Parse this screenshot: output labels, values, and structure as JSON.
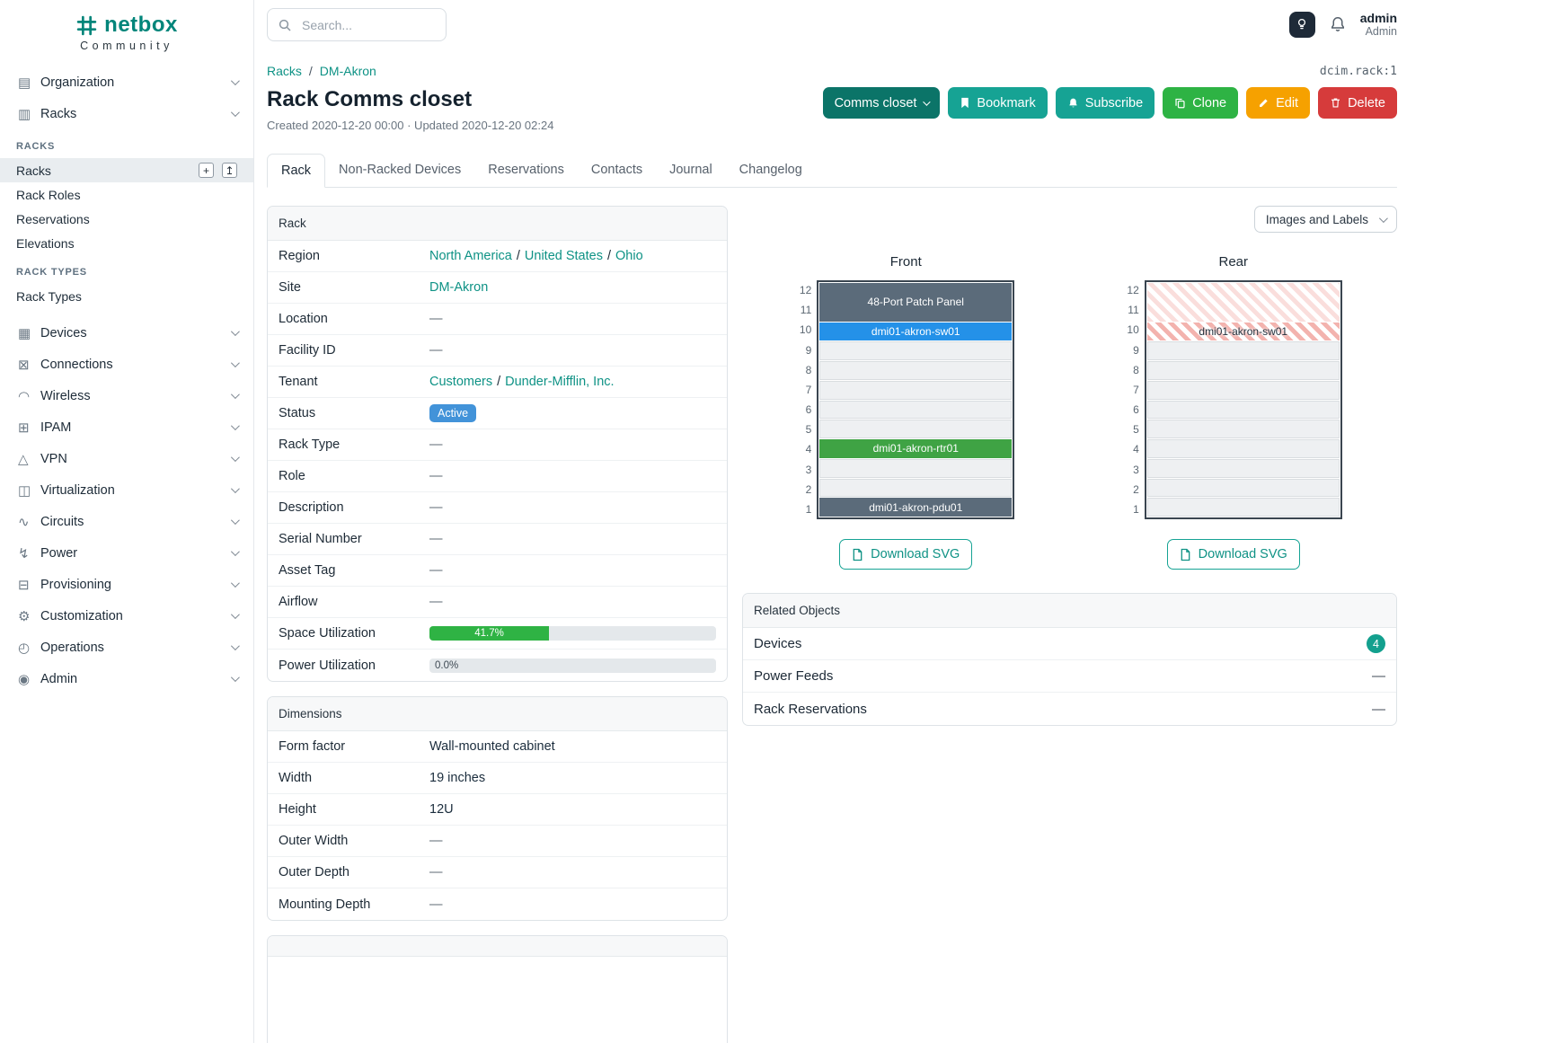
{
  "brand": {
    "name": "netbox",
    "tagline": "Community"
  },
  "topbar": {
    "search_placeholder": "Search...",
    "username": "admin",
    "role": "Admin"
  },
  "sidebar": {
    "top": [
      {
        "label": "Organization",
        "icon": "building-icon",
        "glyph": "▤"
      },
      {
        "label": "Racks",
        "icon": "rack-icon",
        "glyph": "▥"
      }
    ],
    "racks_group": {
      "section1": "RACKS",
      "items1": [
        {
          "label": "Racks",
          "active": true,
          "add_button": "+",
          "import_button": "↥"
        },
        {
          "label": "Rack Roles"
        },
        {
          "label": "Reservations"
        },
        {
          "label": "Elevations"
        }
      ],
      "section2": "RACK TYPES",
      "items2": [
        {
          "label": "Rack Types"
        }
      ]
    },
    "menu": [
      {
        "label": "Devices",
        "icon": "devices-icon",
        "glyph": "▦"
      },
      {
        "label": "Connections",
        "icon": "connections-icon",
        "glyph": "⊠"
      },
      {
        "label": "Wireless",
        "icon": "wireless-icon",
        "glyph": "◠"
      },
      {
        "label": "IPAM",
        "icon": "ipam-icon",
        "glyph": "⊞"
      },
      {
        "label": "VPN",
        "icon": "vpn-icon",
        "glyph": "△"
      },
      {
        "label": "Virtualization",
        "icon": "virtualization-icon",
        "glyph": "◫"
      },
      {
        "label": "Circuits",
        "icon": "circuits-icon",
        "glyph": "∿"
      },
      {
        "label": "Power",
        "icon": "power-icon",
        "glyph": "↯"
      },
      {
        "label": "Provisioning",
        "icon": "provisioning-icon",
        "glyph": "⊟"
      },
      {
        "label": "Customization",
        "icon": "customization-icon",
        "glyph": "⚙"
      },
      {
        "label": "Operations",
        "icon": "operations-icon",
        "glyph": "◴"
      },
      {
        "label": "Admin",
        "icon": "admin-icon",
        "glyph": "◉"
      }
    ]
  },
  "breadcrumb": {
    "items": [
      "Racks",
      "DM-Akron"
    ],
    "separator": "/",
    "object_id": "dcim.rack:1"
  },
  "header": {
    "title": "Rack Comms closet",
    "meta": "Created 2020-12-20 00:00 · Updated 2020-12-20 02:24",
    "actions": {
      "context": "Comms closet",
      "bookmark": "Bookmark",
      "subscribe": "Subscribe",
      "clone": "Clone",
      "edit": "Edit",
      "delete": "Delete"
    }
  },
  "tabs": [
    {
      "label": "Rack",
      "active": true
    },
    {
      "label": "Non-Racked Devices"
    },
    {
      "label": "Reservations"
    },
    {
      "label": "Contacts"
    },
    {
      "label": "Journal"
    },
    {
      "label": "Changelog"
    }
  ],
  "rack_info": {
    "title": "Rack",
    "region": {
      "label": "Region",
      "links": [
        "North America",
        "United States",
        "Ohio"
      ],
      "separator": "/"
    },
    "site": {
      "label": "Site",
      "value": "DM-Akron"
    },
    "location": {
      "label": "Location",
      "value": "—"
    },
    "facility": {
      "label": "Facility ID",
      "value": "—"
    },
    "tenant": {
      "label": "Tenant",
      "links": [
        "Customers",
        "Dunder-Mifflin, Inc."
      ],
      "separator": "/"
    },
    "status": {
      "label": "Status",
      "value": "Active"
    },
    "rack_type": {
      "label": "Rack Type",
      "value": "—"
    },
    "role": {
      "label": "Role",
      "value": "—"
    },
    "description": {
      "label": "Description",
      "value": "—"
    },
    "serial": {
      "label": "Serial Number",
      "value": "—"
    },
    "asset_tag": {
      "label": "Asset Tag",
      "value": "—"
    },
    "airflow": {
      "label": "Airflow",
      "value": "—"
    },
    "space": {
      "label": "Space Utilization",
      "percent": 41.7,
      "text": "41.7%"
    },
    "power": {
      "label": "Power Utilization",
      "percent": 0.0,
      "text": "0.0%"
    }
  },
  "dimensions": {
    "title": "Dimensions",
    "rows": [
      [
        "Form factor",
        "Wall-mounted cabinet"
      ],
      [
        "Width",
        "19 inches"
      ],
      [
        "Height",
        "12U"
      ],
      [
        "Outer Width",
        "—"
      ],
      [
        "Outer Depth",
        "—"
      ],
      [
        "Mounting Depth",
        "—"
      ]
    ]
  },
  "elevations": {
    "view_label": "Images and Labels",
    "download_label": "Download SVG",
    "unit_count": 12,
    "front": {
      "title": "Front",
      "units": [
        {
          "span": 2,
          "label": "48-Port Patch Panel",
          "style": "slate"
        },
        {
          "span": 1,
          "label": "dmi01-akron-sw01",
          "style": "blue"
        },
        {
          "span": 1,
          "label": "",
          "style": "empty"
        },
        {
          "span": 1,
          "label": "",
          "style": "empty"
        },
        {
          "span": 1,
          "label": "",
          "style": "empty"
        },
        {
          "span": 1,
          "label": "",
          "style": "empty"
        },
        {
          "span": 1,
          "label": "",
          "style": "empty"
        },
        {
          "span": 1,
          "label": "dmi01-akron-rtr01",
          "style": "green"
        },
        {
          "span": 1,
          "label": "",
          "style": "empty"
        },
        {
          "span": 1,
          "label": "",
          "style": "empty"
        },
        {
          "span": 1,
          "label": "dmi01-akron-pdu01",
          "style": "slate"
        }
      ]
    },
    "rear": {
      "title": "Rear",
      "units": [
        {
          "span": 2,
          "label": "",
          "style": "hatch-light"
        },
        {
          "span": 1,
          "label": "dmi01-akron-sw01",
          "style": "hatch"
        },
        {
          "span": 1,
          "label": "",
          "style": "empty"
        },
        {
          "span": 1,
          "label": "",
          "style": "empty"
        },
        {
          "span": 1,
          "label": "",
          "style": "empty"
        },
        {
          "span": 1,
          "label": "",
          "style": "empty"
        },
        {
          "span": 1,
          "label": "",
          "style": "empty"
        },
        {
          "span": 1,
          "label": "",
          "style": "empty"
        },
        {
          "span": 1,
          "label": "",
          "style": "empty"
        },
        {
          "span": 1,
          "label": "",
          "style": "empty"
        },
        {
          "span": 1,
          "label": "",
          "style": "empty"
        }
      ]
    }
  },
  "related": {
    "title": "Related Objects",
    "rows": [
      {
        "label": "Devices",
        "count": "4"
      },
      {
        "label": "Power Feeds",
        "value": "—"
      },
      {
        "label": "Rack Reservations",
        "value": "—"
      }
    ]
  },
  "colors": {
    "brand_teal": "#00857a",
    "link_teal": "#0e9285",
    "button_teal": "#16a394",
    "context_teal": "#0b7468",
    "clone_green": "#2eb344",
    "edit_yellow": "#f6a100",
    "delete_red": "#d63b3b",
    "status_blue": "#4293d9",
    "progress_green": "#2fb344",
    "device_slate": "#5b6b7a",
    "device_blue": "#2491e8",
    "device_green": "#3fa344"
  }
}
